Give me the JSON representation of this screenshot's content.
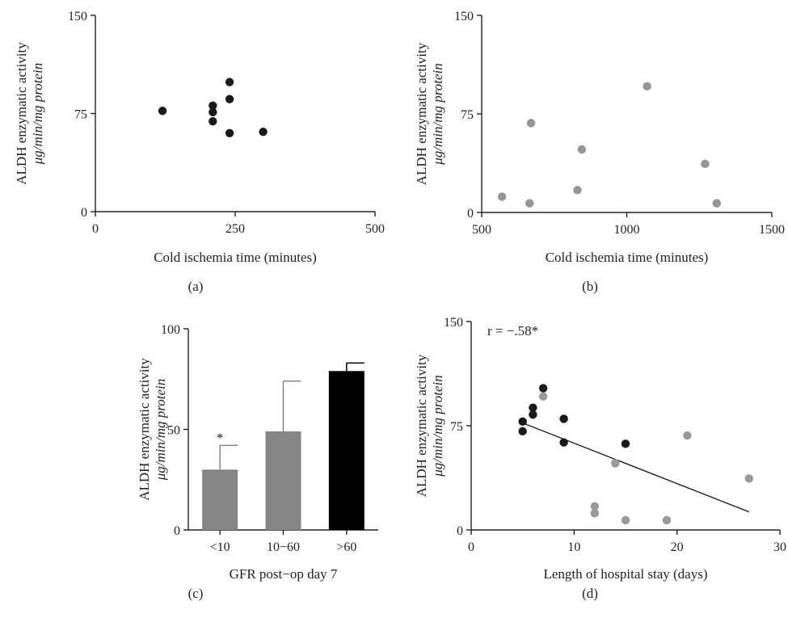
{
  "chart_data": [
    {
      "id": "a",
      "type": "scatter",
      "panel_label": "(a)",
      "xlabel": "Cold ischemia time (minutes)",
      "ylabel_line1": "ALDH enzymatic activity",
      "ylabel_line2": "μg/min/mg protein",
      "xlim": [
        0,
        500
      ],
      "ylim": [
        0,
        150
      ],
      "xticks": [
        0,
        250,
        500
      ],
      "yticks": [
        0,
        75,
        150
      ],
      "series": [
        {
          "color": "#1a1a1a",
          "points": [
            {
              "x": 120,
              "y": 77
            },
            {
              "x": 210,
              "y": 81
            },
            {
              "x": 210,
              "y": 76
            },
            {
              "x": 210,
              "y": 69
            },
            {
              "x": 240,
              "y": 99
            },
            {
              "x": 240,
              "y": 86
            },
            {
              "x": 240,
              "y": 60
            },
            {
              "x": 300,
              "y": 61
            }
          ]
        }
      ]
    },
    {
      "id": "b",
      "type": "scatter",
      "panel_label": "(b)",
      "xlabel": "Cold ischemia time (minutes)",
      "ylabel_line1": "ALDH enzymatic activity",
      "ylabel_line2": "μg/min/mg protein",
      "xlim": [
        500,
        1500
      ],
      "ylim": [
        0,
        150
      ],
      "xticks": [
        500,
        1000,
        1500
      ],
      "yticks": [
        0,
        75,
        150
      ],
      "series": [
        {
          "color": "#969696",
          "points": [
            {
              "x": 570,
              "y": 12
            },
            {
              "x": 665,
              "y": 7
            },
            {
              "x": 670,
              "y": 68
            },
            {
              "x": 830,
              "y": 17
            },
            {
              "x": 845,
              "y": 48
            },
            {
              "x": 1070,
              "y": 96
            },
            {
              "x": 1270,
              "y": 37
            },
            {
              "x": 1310,
              "y": 7
            }
          ]
        }
      ]
    },
    {
      "id": "c",
      "type": "bar",
      "panel_label": "(c)",
      "xlabel": "GFR post−op day 7",
      "ylabel_line1": "ALDH enzymatic activity",
      "ylabel_line2": "μg/min/mg protein",
      "ylim": [
        0,
        100
      ],
      "yticks": [
        0,
        50,
        100
      ],
      "categories": [
        "<10",
        "10−60",
        ">60"
      ],
      "values": [
        30,
        49,
        79
      ],
      "errors": [
        12,
        25,
        4
      ],
      "colors": [
        "#858585",
        "#858585",
        "#000000"
      ],
      "annotations": [
        {
          "category": "<10",
          "text": "*"
        }
      ]
    },
    {
      "id": "d",
      "type": "scatter",
      "panel_label": "(d)",
      "xlabel": "Length of hospital stay (days)",
      "ylabel_line1": "ALDH enzymatic activity",
      "ylabel_line2": "μg/min/mg protein",
      "xlim": [
        0,
        30
      ],
      "ylim": [
        0,
        150
      ],
      "xticks": [
        0,
        10,
        20,
        30
      ],
      "yticks": [
        0,
        75,
        150
      ],
      "annotation": "r = −.58*",
      "regression_line": {
        "x1": 5,
        "y1": 77,
        "x2": 27,
        "y2": 13
      },
      "series": [
        {
          "color": "#1a1a1a",
          "points": [
            {
              "x": 5,
              "y": 78
            },
            {
              "x": 5,
              "y": 71
            },
            {
              "x": 6,
              "y": 88
            },
            {
              "x": 6,
              "y": 83
            },
            {
              "x": 7,
              "y": 102
            },
            {
              "x": 9,
              "y": 80
            },
            {
              "x": 9,
              "y": 63
            },
            {
              "x": 15,
              "y": 62
            }
          ]
        },
        {
          "color": "#999999",
          "points": [
            {
              "x": 7,
              "y": 96
            },
            {
              "x": 12,
              "y": 17
            },
            {
              "x": 12,
              "y": 12
            },
            {
              "x": 14,
              "y": 48
            },
            {
              "x": 15,
              "y": 7
            },
            {
              "x": 19,
              "y": 7
            },
            {
              "x": 21,
              "y": 68
            },
            {
              "x": 27,
              "y": 37
            }
          ]
        }
      ]
    }
  ]
}
